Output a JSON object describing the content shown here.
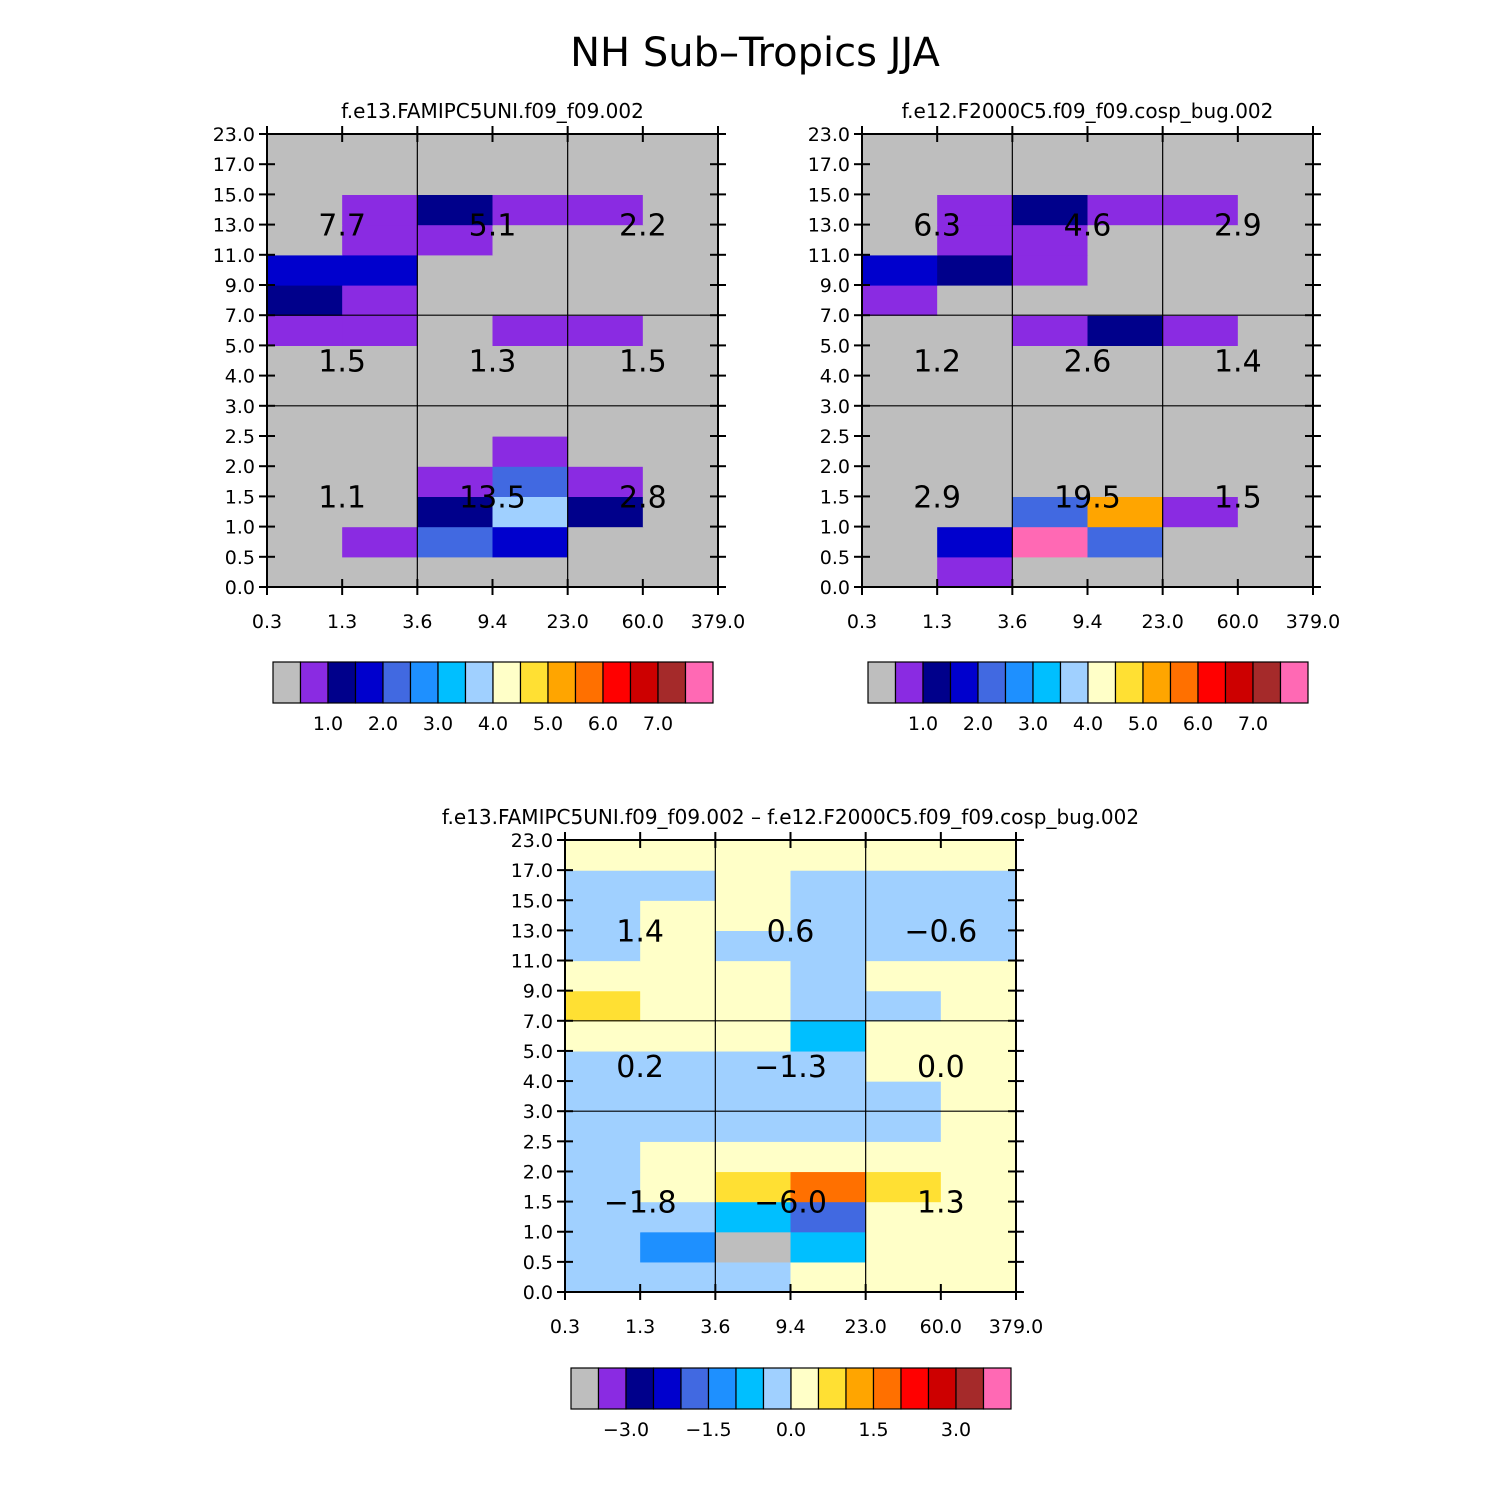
{
  "figure": {
    "title": "NH Sub–Tropics JJA"
  },
  "palette": [
    "#bebebe",
    "#8a2be2",
    "#00008b",
    "#0000cd",
    "#4169e1",
    "#1e90ff",
    "#00bfff",
    "#a0d0ff",
    "#ffffc8",
    "#ffe033",
    "#ffa500",
    "#ff7000",
    "#ff0000",
    "#cd0000",
    "#a52a2a",
    "#ff69b4"
  ],
  "chart_data": [
    {
      "type": "heatmap",
      "title": "f.e13.FAMIPC5UNI.f09_f09.002",
      "x_tick_labels": [
        "0.3",
        "1.3",
        "3.6",
        "9.4",
        "23.0",
        "60.0",
        "379.0"
      ],
      "y_tick_labels": [
        "0.0",
        "0.5",
        "1.0",
        "1.5",
        "2.0",
        "2.5",
        "3.0",
        "4.0",
        "5.0",
        "7.0",
        "9.0",
        "11.0",
        "13.0",
        "15.0",
        "17.0",
        "23.0"
      ],
      "cells_note": "rows listed bottom (0.0-0.5) to top (17.0-23.0); values are colour-bin indices into palette",
      "cells": [
        [
          0,
          0,
          0,
          0,
          0,
          0
        ],
        [
          0,
          1,
          4,
          3,
          0,
          0
        ],
        [
          0,
          0,
          2,
          7,
          2,
          0
        ],
        [
          0,
          0,
          1,
          4,
          1,
          0
        ],
        [
          0,
          0,
          0,
          1,
          0,
          0
        ],
        [
          0,
          0,
          0,
          0,
          0,
          0
        ],
        [
          0,
          0,
          0,
          0,
          0,
          0
        ],
        [
          0,
          0,
          0,
          0,
          0,
          0
        ],
        [
          1,
          1,
          0,
          1,
          1,
          0
        ],
        [
          2,
          1,
          0,
          0,
          0,
          0
        ],
        [
          3,
          3,
          0,
          0,
          0,
          0
        ],
        [
          0,
          1,
          1,
          0,
          0,
          0
        ],
        [
          0,
          1,
          2,
          1,
          1,
          0
        ],
        [
          0,
          0,
          0,
          0,
          0,
          0
        ],
        [
          0,
          0,
          0,
          0,
          0,
          0
        ]
      ],
      "region_totals": {
        "top": [
          "7.7",
          "5.1",
          "2.2"
        ],
        "middle": [
          "1.5",
          "1.3",
          "1.5"
        ],
        "bottom": [
          "1.1",
          "13.5",
          "2.8"
        ]
      },
      "colorbar_labels": [
        "1.0",
        "2.0",
        "3.0",
        "4.0",
        "5.0",
        "6.0",
        "7.0"
      ]
    },
    {
      "type": "heatmap",
      "title": "f.e12.F2000C5.f09_f09.cosp_bug.002",
      "x_tick_labels": [
        "0.3",
        "1.3",
        "3.6",
        "9.4",
        "23.0",
        "60.0",
        "379.0"
      ],
      "y_tick_labels": [
        "0.0",
        "0.5",
        "1.0",
        "1.5",
        "2.0",
        "2.5",
        "3.0",
        "4.0",
        "5.0",
        "7.0",
        "9.0",
        "11.0",
        "13.0",
        "15.0",
        "17.0",
        "23.0"
      ],
      "cells_note": "rows listed bottom (0.0-0.5) to top (17.0-23.0); values are colour-bin indices into palette",
      "cells": [
        [
          0,
          1,
          0,
          0,
          0,
          0
        ],
        [
          0,
          3,
          15,
          4,
          0,
          0
        ],
        [
          0,
          0,
          4,
          10,
          1,
          0
        ],
        [
          0,
          0,
          0,
          0,
          0,
          0
        ],
        [
          0,
          0,
          0,
          0,
          0,
          0
        ],
        [
          0,
          0,
          0,
          0,
          0,
          0
        ],
        [
          0,
          0,
          0,
          0,
          0,
          0
        ],
        [
          0,
          0,
          0,
          0,
          0,
          0
        ],
        [
          0,
          0,
          1,
          2,
          1,
          0
        ],
        [
          1,
          0,
          0,
          0,
          0,
          0
        ],
        [
          3,
          2,
          1,
          0,
          0,
          0
        ],
        [
          0,
          1,
          1,
          0,
          0,
          0
        ],
        [
          0,
          1,
          2,
          1,
          1,
          0
        ],
        [
          0,
          0,
          0,
          0,
          0,
          0
        ],
        [
          0,
          0,
          0,
          0,
          0,
          0
        ]
      ],
      "region_totals": {
        "top": [
          "6.3",
          "4.6",
          "2.9"
        ],
        "middle": [
          "1.2",
          "2.6",
          "1.4"
        ],
        "bottom": [
          "2.9",
          "19.5",
          "1.5"
        ]
      },
      "colorbar_labels": [
        "1.0",
        "2.0",
        "3.0",
        "4.0",
        "5.0",
        "6.0",
        "7.0"
      ]
    },
    {
      "type": "heatmap",
      "title": "f.e13.FAMIPC5UNI.f09_f09.002 – f.e12.F2000C5.f09_f09.cosp_bug.002",
      "x_tick_labels": [
        "0.3",
        "1.3",
        "3.6",
        "9.4",
        "23.0",
        "60.0",
        "379.0"
      ],
      "y_tick_labels": [
        "0.0",
        "0.5",
        "1.0",
        "1.5",
        "2.0",
        "2.5",
        "3.0",
        "4.0",
        "5.0",
        "7.0",
        "9.0",
        "11.0",
        "13.0",
        "15.0",
        "17.0",
        "23.0"
      ],
      "cells_note": "rows listed bottom (0.0-0.5) to top (17.0-23.0); values are colour-bin indices into palette",
      "cells": [
        [
          7,
          7,
          7,
          8,
          8,
          8
        ],
        [
          7,
          5,
          0,
          6,
          8,
          8
        ],
        [
          7,
          7,
          6,
          4,
          8,
          8
        ],
        [
          7,
          8,
          9,
          11,
          9,
          8
        ],
        [
          7,
          8,
          8,
          8,
          8,
          8
        ],
        [
          7,
          7,
          7,
          7,
          7,
          8
        ],
        [
          7,
          7,
          7,
          7,
          7,
          8
        ],
        [
          7,
          7,
          7,
          7,
          8,
          8
        ],
        [
          8,
          8,
          8,
          6,
          8,
          8
        ],
        [
          9,
          8,
          8,
          7,
          7,
          8
        ],
        [
          8,
          8,
          8,
          7,
          8,
          8
        ],
        [
          7,
          8,
          7,
          7,
          7,
          7
        ],
        [
          7,
          8,
          8,
          7,
          7,
          7
        ],
        [
          7,
          7,
          8,
          7,
          7,
          7
        ],
        [
          8,
          8,
          8,
          8,
          8,
          8
        ]
      ],
      "region_totals": {
        "top": [
          "1.4",
          "0.6",
          "−0.6"
        ],
        "middle": [
          "0.2",
          "−1.3",
          "0.0"
        ],
        "bottom": [
          "−1.8",
          "−6.0",
          "1.3"
        ]
      },
      "colorbar_labels": [
        "−3.0",
        "−1.5",
        "0.0",
        "1.5",
        "3.0"
      ]
    }
  ]
}
